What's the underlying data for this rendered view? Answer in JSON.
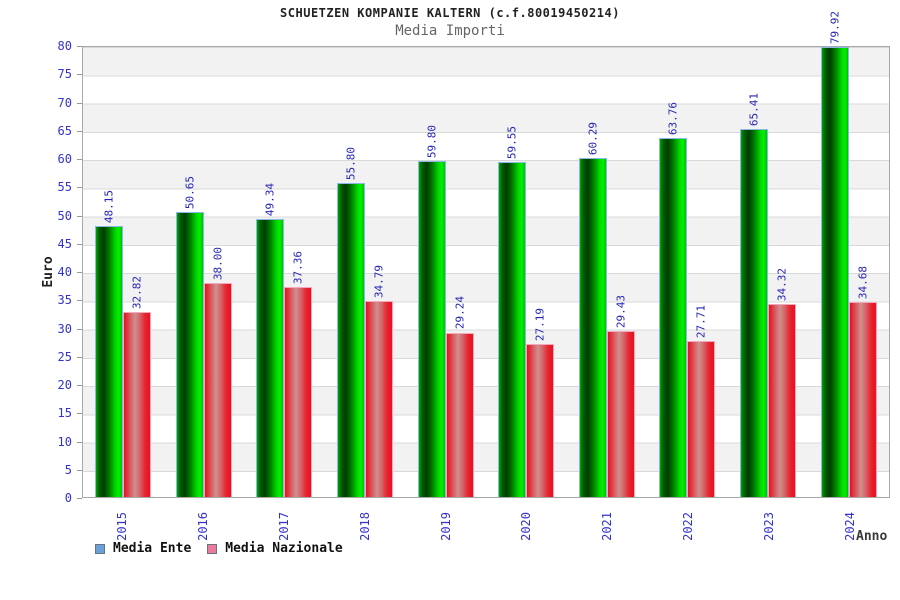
{
  "title": "SCHUETZEN KOMPANIE KALTERN (c.f.80019450214)",
  "subtitle": "Media Importi",
  "axis": {
    "ylabel": "Euro",
    "xlabel": "Anno"
  },
  "legend": {
    "ente_label": "Media Ente",
    "nazionale_label": "Media Nazionale"
  },
  "colors": {
    "axis_text": "#3333cc",
    "value_text": "#2525b5",
    "band_gray": "#f2f2f2",
    "band_white": "#ffffff",
    "ente_fill": "#00c000",
    "ente_border": "#8cb8e8",
    "nazionale_fill": "#e01020",
    "nazionale_border": "#f4aabc",
    "legend_ente_swatch": "#68a2d8",
    "legend_nazionale_swatch": "#ec7a9c"
  },
  "chart_data": {
    "type": "bar",
    "title": "SCHUETZEN KOMPANIE KALTERN (c.f.80019450214)",
    "subtitle": "Media Importi",
    "categories": [
      "2015",
      "2016",
      "2017",
      "2018",
      "2019",
      "2020",
      "2021",
      "2022",
      "2023",
      "2024"
    ],
    "series": [
      {
        "name": "Media Ente",
        "values": [
          48.15,
          50.65,
          49.34,
          55.8,
          59.8,
          59.55,
          60.29,
          63.76,
          65.41,
          79.92
        ]
      },
      {
        "name": "Media Nazionale",
        "values": [
          32.82,
          38.0,
          37.36,
          34.79,
          29.24,
          27.19,
          29.43,
          27.71,
          34.32,
          34.68
        ]
      }
    ],
    "xlabel": "Anno",
    "ylabel": "Euro",
    "ylim": [
      0,
      80
    ],
    "ytick_step": 5,
    "value_label_decimals": 2,
    "grid": "horizontal-bands-alternating",
    "legend_position": "bottom-left",
    "bar_label_rotation": 90,
    "xtick_rotation": 90
  }
}
